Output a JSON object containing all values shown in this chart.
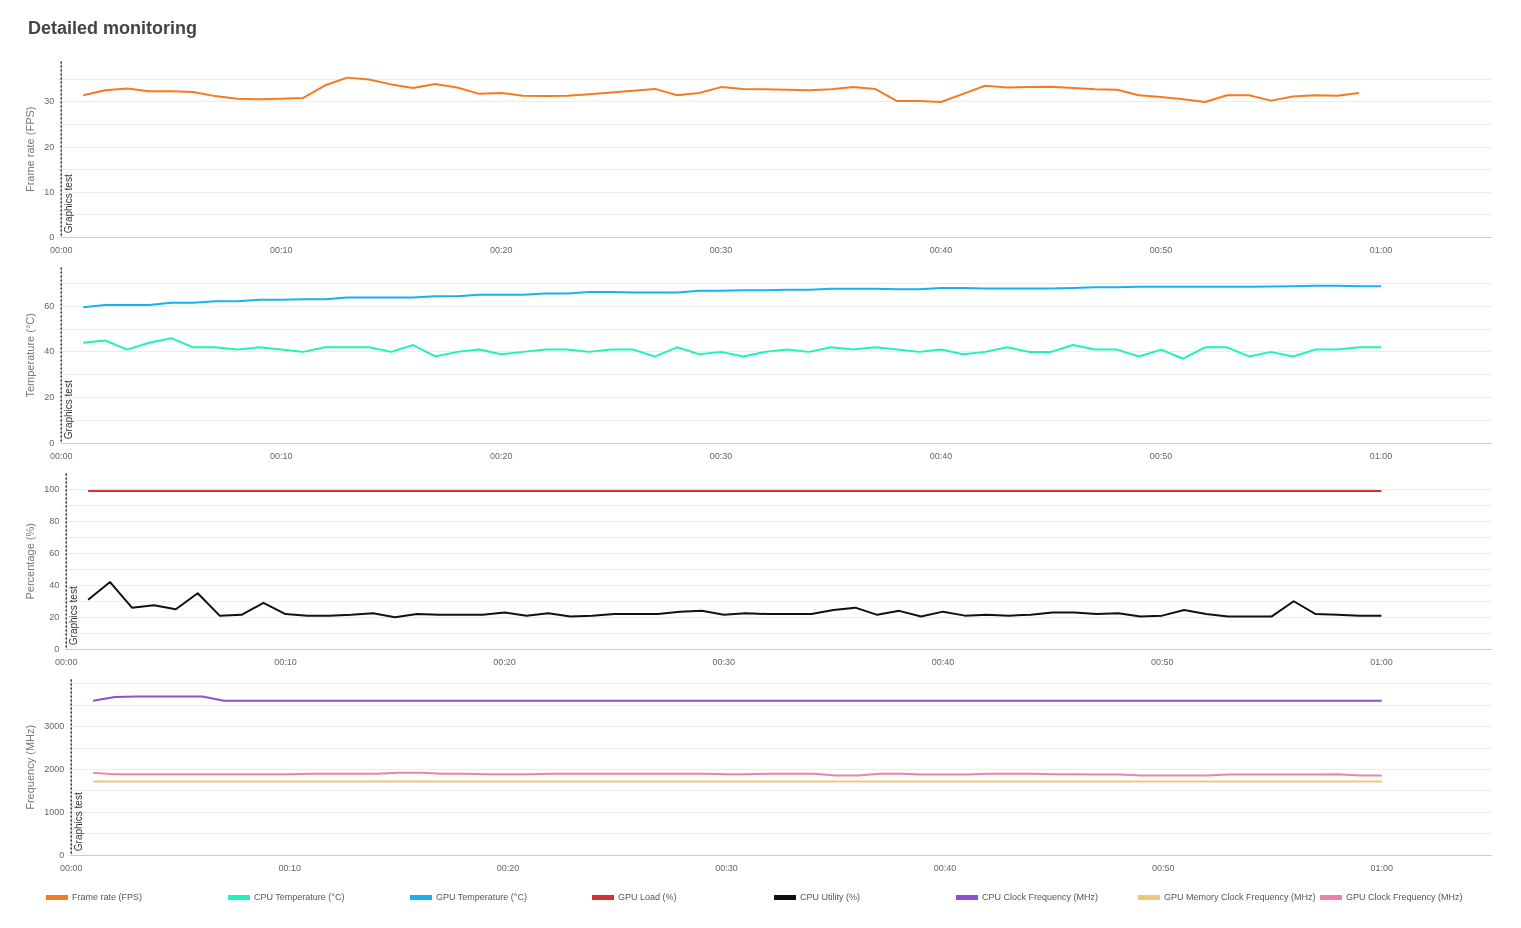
{
  "chart_data": [
    {
      "type": "line",
      "title": "Detailed monitoring",
      "ylabel": "Frame rate (FPS)",
      "xlim": [
        0,
        65
      ],
      "xticks": [
        {
          "value": 0,
          "label": "00:00"
        },
        {
          "value": 10,
          "label": "00:10"
        },
        {
          "value": 20,
          "label": "00:20"
        },
        {
          "value": 30,
          "label": "00:30"
        },
        {
          "value": 40,
          "label": "00:40"
        },
        {
          "value": 50,
          "label": "00:50"
        },
        {
          "value": 60,
          "label": "01:00"
        }
      ],
      "ylim": [
        0,
        39
      ],
      "yticks": [
        0,
        {
          "value": 5,
          "label": null
        },
        10,
        {
          "value": 15,
          "label": null
        },
        20,
        {
          "value": 25,
          "label": null
        },
        30,
        {
          "value": 35,
          "label": null
        }
      ],
      "grid": "y",
      "marker": "none",
      "legend": "bottom",
      "ref_lines": [
        {
          "axis": "x",
          "value": 0,
          "label": "Graphics test",
          "line_style": "dotted"
        }
      ],
      "x": [
        1,
        2,
        3,
        4,
        5,
        6,
        7,
        8,
        9,
        10,
        11,
        12,
        13,
        14,
        15,
        16,
        17,
        18,
        19,
        20,
        21,
        22,
        23,
        24,
        25,
        26,
        27,
        28,
        29,
        30,
        31,
        32,
        33,
        34,
        35,
        36,
        37,
        38,
        39,
        40,
        41,
        42,
        43,
        44,
        45,
        46,
        47,
        48,
        49,
        50,
        51,
        52,
        53,
        54,
        55,
        56,
        57,
        58,
        59
      ],
      "series": [
        {
          "name": "Frame rate (FPS)",
          "color": "#f47c20",
          "values": [
            31.5,
            32.6,
            33.0,
            32.4,
            32.4,
            32.2,
            31.3,
            30.7,
            30.6,
            30.7,
            30.9,
            33.7,
            35.4,
            35.0,
            33.9,
            33.1,
            34.0,
            33.2,
            31.8,
            32.0,
            31.4,
            31.3,
            31.4,
            31.7,
            32.1,
            32.5,
            32.9,
            31.5,
            32.0,
            33.3,
            32.9,
            32.8,
            32.7,
            32.6,
            32.8,
            33.3,
            32.9,
            30.2,
            30.2,
            30.0,
            31.8,
            33.6,
            33.2,
            33.3,
            33.4,
            33.1,
            32.8,
            32.7,
            31.5,
            31.1,
            30.6,
            30.0,
            31.5,
            31.5,
            30.3,
            31.2,
            31.5,
            31.4,
            32.0
          ]
        }
      ]
    },
    {
      "type": "line",
      "ylabel": "Temperature (°C)",
      "xlim": [
        0,
        65
      ],
      "xticks": [
        {
          "value": 0,
          "label": "00:00"
        },
        {
          "value": 10,
          "label": "00:10"
        },
        {
          "value": 20,
          "label": "00:20"
        },
        {
          "value": 30,
          "label": "00:30"
        },
        {
          "value": 40,
          "label": "00:40"
        },
        {
          "value": 50,
          "label": "00:50"
        },
        {
          "value": 60,
          "label": "01:00"
        }
      ],
      "ylim": [
        0,
        77
      ],
      "yticks": [
        0,
        {
          "value": 10,
          "label": null
        },
        20,
        {
          "value": 30,
          "label": null
        },
        40,
        {
          "value": 50,
          "label": null
        },
        60,
        {
          "value": 70,
          "label": null
        }
      ],
      "grid": "y",
      "marker": "none",
      "legend": "bottom",
      "ref_lines": [
        {
          "axis": "x",
          "value": 0,
          "label": "Graphics test",
          "line_style": "dotted"
        }
      ],
      "x": [
        1,
        2,
        3,
        4,
        5,
        6,
        7,
        8,
        9,
        10,
        11,
        12,
        13,
        14,
        15,
        16,
        17,
        18,
        19,
        20,
        21,
        22,
        23,
        24,
        25,
        26,
        27,
        28,
        29,
        30,
        31,
        32,
        33,
        34,
        35,
        36,
        37,
        38,
        39,
        40,
        41,
        42,
        43,
        44,
        45,
        46,
        47,
        48,
        49,
        50,
        51,
        52,
        53,
        54,
        55,
        56,
        57,
        58,
        59,
        60
      ],
      "series": [
        {
          "name": "CPU Temperature (°C)",
          "color": "#1ef2bd",
          "values": [
            44,
            45,
            41,
            44,
            46,
            42,
            42,
            41,
            42,
            41,
            40,
            42,
            42,
            42,
            40,
            43,
            38,
            40,
            41,
            39,
            40,
            41,
            41,
            40,
            41,
            41,
            38,
            42,
            39,
            40,
            38,
            40,
            41,
            40,
            42,
            41,
            42,
            41,
            40,
            41,
            39,
            40,
            42,
            40,
            40,
            43,
            41,
            41,
            38,
            41,
            37,
            42,
            42,
            38,
            40,
            38,
            41,
            41,
            42,
            42
          ]
        },
        {
          "name": "GPU Temperature (°C)",
          "color": "#1ab0f0",
          "values": [
            59.5,
            60.5,
            60.5,
            60.5,
            61.5,
            61.5,
            62.2,
            62.2,
            62.8,
            62.8,
            63,
            63,
            63.8,
            63.8,
            63.8,
            63.8,
            64.4,
            64.4,
            65,
            65,
            65,
            65.6,
            65.6,
            66.2,
            66.2,
            66,
            66,
            66,
            66.8,
            66.8,
            67,
            67,
            67.2,
            67.2,
            67.6,
            67.6,
            67.6,
            67.4,
            67.4,
            68,
            68,
            67.8,
            67.8,
            67.8,
            67.8,
            68,
            68.3,
            68.3,
            68.5,
            68.5,
            68.5,
            68.5,
            68.5,
            68.5,
            68.6,
            68.7,
            69,
            69,
            68.7,
            68.7
          ]
        }
      ]
    },
    {
      "type": "line",
      "ylabel": "Percentage (%)",
      "xlim": [
        0,
        65
      ],
      "xticks": [
        {
          "value": 0,
          "label": "00:00"
        },
        {
          "value": 10,
          "label": "00:10"
        },
        {
          "value": 20,
          "label": "00:20"
        },
        {
          "value": 30,
          "label": "00:30"
        },
        {
          "value": 40,
          "label": "00:40"
        },
        {
          "value": 50,
          "label": "00:50"
        },
        {
          "value": 60,
          "label": "01:00"
        }
      ],
      "ylim": [
        0,
        110
      ],
      "yticks": [
        0,
        {
          "value": 10,
          "label": null
        },
        20,
        {
          "value": 30,
          "label": null
        },
        40,
        {
          "value": 50,
          "label": null
        },
        60,
        {
          "value": 70,
          "label": null
        },
        80,
        {
          "value": 90,
          "label": null
        },
        100
      ],
      "grid": "y",
      "marker": "none",
      "legend": "bottom",
      "ref_lines": [
        {
          "axis": "x",
          "value": 0,
          "label": "Graphics test",
          "line_style": "dotted"
        }
      ],
      "x": [
        1,
        2,
        3,
        4,
        5,
        6,
        7,
        8,
        9,
        10,
        11,
        12,
        13,
        14,
        15,
        16,
        17,
        18,
        19,
        20,
        21,
        22,
        23,
        24,
        25,
        26,
        27,
        28,
        29,
        30,
        31,
        32,
        33,
        34,
        35,
        36,
        37,
        38,
        39,
        40,
        41,
        42,
        43,
        44,
        45,
        46,
        47,
        48,
        49,
        50,
        51,
        52,
        53,
        54,
        55,
        56,
        57,
        58,
        59,
        60
      ],
      "series": [
        {
          "name": "GPU Load (%)",
          "color": "#d63031",
          "values": [
            99,
            99,
            99,
            99,
            99,
            99,
            99,
            99,
            99,
            99,
            99,
            99,
            99,
            99,
            99,
            99,
            99,
            99,
            99,
            99,
            99,
            99,
            99,
            99,
            99,
            99,
            99,
            99,
            99,
            99,
            99,
            99,
            99,
            99,
            99,
            99,
            99,
            99,
            99,
            99,
            99,
            99,
            99,
            99,
            99,
            99,
            99,
            99,
            99,
            99,
            99,
            99,
            99,
            99,
            99,
            99,
            99,
            99,
            99,
            99
          ]
        },
        {
          "name": "CPU Utility (%)",
          "color": "#111111",
          "values": [
            31,
            42,
            26,
            27.5,
            25,
            35,
            21,
            21.5,
            29,
            22,
            21,
            21,
            21.5,
            22.5,
            20,
            22,
            21.5,
            21.5,
            21.5,
            23,
            21,
            22.5,
            20.5,
            21,
            22,
            22,
            22,
            23.5,
            24,
            21.5,
            22.5,
            22,
            22,
            22,
            24.5,
            26,
            21.5,
            24,
            20.5,
            23.5,
            21,
            21.5,
            21,
            21.5,
            23,
            23,
            22,
            22.5,
            20.5,
            21,
            24.5,
            22,
            20.5,
            20.5,
            20.5,
            30,
            22,
            21.5,
            21,
            21
          ]
        }
      ]
    },
    {
      "type": "line",
      "ylabel": "Frequency (MHz)",
      "xlim": [
        0,
        65
      ],
      "xticks": [
        {
          "value": 0,
          "label": "00:00"
        },
        {
          "value": 10,
          "label": "00:10"
        },
        {
          "value": 20,
          "label": "00:20"
        },
        {
          "value": 30,
          "label": "00:30"
        },
        {
          "value": 40,
          "label": "00:40"
        },
        {
          "value": 50,
          "label": "00:50"
        },
        {
          "value": 60,
          "label": "01:00"
        }
      ],
      "ylim": [
        0,
        4100
      ],
      "yticks": [
        0,
        {
          "value": 500,
          "label": null
        },
        1000,
        {
          "value": 1500,
          "label": null
        },
        2000,
        {
          "value": 2500,
          "label": null
        },
        3000,
        {
          "value": 3500,
          "label": null
        },
        {
          "value": 4000,
          "label": null
        }
      ],
      "grid": "y",
      "marker": "none",
      "legend": "bottom",
      "ref_lines": [
        {
          "axis": "x",
          "value": 0,
          "label": "Graphics test",
          "line_style": "dotted"
        }
      ],
      "x": [
        1,
        2,
        3,
        4,
        5,
        6,
        7,
        8,
        9,
        10,
        11,
        12,
        13,
        14,
        15,
        16,
        17,
        18,
        19,
        20,
        21,
        22,
        23,
        24,
        25,
        26,
        27,
        28,
        29,
        30,
        31,
        32,
        33,
        34,
        35,
        36,
        37,
        38,
        39,
        40,
        41,
        42,
        43,
        44,
        45,
        46,
        47,
        48,
        49,
        50,
        51,
        52,
        53,
        54,
        55,
        56,
        57,
        58,
        59,
        60
      ],
      "series": [
        {
          "name": "CPU Clock Frequency (MHz)",
          "color": "#8e4ed8",
          "values": [
            3600,
            3690,
            3700,
            3700,
            3700,
            3700,
            3600,
            3600,
            3600,
            3600,
            3600,
            3600,
            3600,
            3600,
            3600,
            3600,
            3600,
            3600,
            3600,
            3600,
            3600,
            3600,
            3600,
            3600,
            3600,
            3600,
            3600,
            3600,
            3600,
            3600,
            3600,
            3600,
            3600,
            3600,
            3600,
            3600,
            3600,
            3600,
            3600,
            3600,
            3600,
            3600,
            3600,
            3600,
            3600,
            3600,
            3600,
            3600,
            3600,
            3600,
            3600,
            3600,
            3600,
            3600,
            3600,
            3600,
            3600,
            3600,
            3600,
            3600
          ]
        },
        {
          "name": "GPU Memory Clock Frequency (MHz)",
          "color": "#ecc878",
          "values": [
            1720,
            1720,
            1720,
            1720,
            1720,
            1720,
            1720,
            1720,
            1720,
            1720,
            1720,
            1720,
            1720,
            1720,
            1720,
            1720,
            1720,
            1720,
            1720,
            1720,
            1720,
            1720,
            1720,
            1720,
            1720,
            1720,
            1720,
            1720,
            1720,
            1720,
            1720,
            1720,
            1720,
            1720,
            1720,
            1720,
            1720,
            1720,
            1720,
            1720,
            1720,
            1720,
            1720,
            1720,
            1720,
            1720,
            1720,
            1720,
            1720,
            1720,
            1720,
            1720,
            1720,
            1720,
            1720,
            1720,
            1720,
            1720,
            1720,
            1720
          ]
        },
        {
          "name": "GPU Clock Frequency (MHz)",
          "color": "#ee82aa",
          "values": [
            1920,
            1890,
            1890,
            1890,
            1890,
            1890,
            1890,
            1890,
            1890,
            1890,
            1900,
            1900,
            1900,
            1900,
            1920,
            1920,
            1900,
            1900,
            1890,
            1890,
            1890,
            1900,
            1900,
            1900,
            1900,
            1900,
            1900,
            1900,
            1900,
            1890,
            1890,
            1900,
            1900,
            1900,
            1860,
            1860,
            1900,
            1900,
            1880,
            1880,
            1880,
            1900,
            1900,
            1900,
            1890,
            1890,
            1880,
            1880,
            1860,
            1860,
            1860,
            1860,
            1880,
            1880,
            1880,
            1880,
            1880,
            1890,
            1860,
            1860
          ]
        }
      ]
    }
  ]
}
